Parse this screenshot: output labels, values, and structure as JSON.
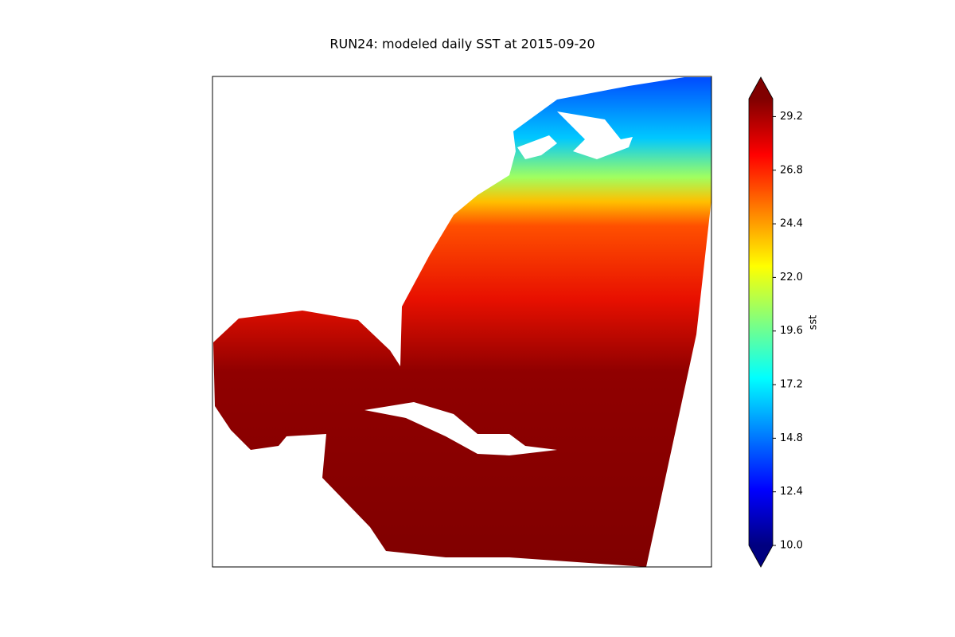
{
  "chart_data": {
    "type": "map",
    "title": "RUN24: modeled daily SST at 2015-09-20",
    "colorbar": {
      "label": "sst",
      "colormap": "jet",
      "extend": "both",
      "lim": [
        10,
        30
      ],
      "ticks": [
        {
          "value": 10,
          "label": "10.0"
        },
        12.4,
        14.8,
        17.2,
        19.6,
        {
          "value": 22,
          "label": "22.0"
        },
        24.4,
        26.8,
        29.2
      ]
    }
  }
}
